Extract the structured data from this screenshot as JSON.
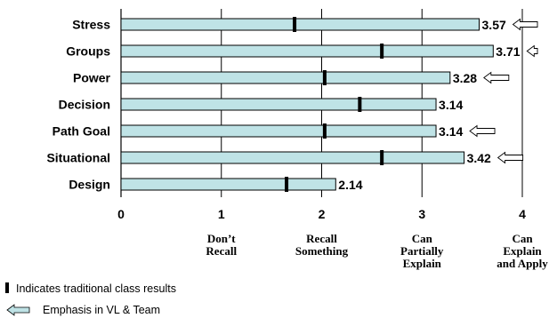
{
  "chart_data": {
    "type": "bar",
    "orientation": "horizontal",
    "categories": [
      "Stress",
      "Groups",
      "Power",
      "Decision",
      "Path Goal",
      "Situational",
      "Design"
    ],
    "values": [
      3.57,
      3.71,
      3.28,
      3.14,
      3.14,
      3.42,
      2.14
    ],
    "value_labels": [
      "3.57",
      "3.71",
      "3.28",
      "3.14",
      "3.14",
      "3.42",
      "2.14"
    ],
    "traditional_class_results": [
      1.73,
      2.6,
      2.03,
      2.38,
      2.03,
      2.6,
      1.65
    ],
    "emphasis_in_vl_and_team": [
      true,
      true,
      true,
      false,
      true,
      true,
      false
    ],
    "xlim": [
      0,
      4
    ],
    "x_ticks": [
      "0",
      "1",
      "2",
      "3",
      "4"
    ],
    "scale_labels": [
      {
        "x": 1,
        "lines": [
          "Don’t",
          "Recall"
        ]
      },
      {
        "x": 2,
        "lines": [
          "Recall",
          "Something"
        ]
      },
      {
        "x": 3,
        "lines": [
          "Can",
          "Partially",
          "Explain"
        ]
      },
      {
        "x": 4,
        "lines": [
          "Can",
          "Explain",
          "and Apply"
        ]
      }
    ],
    "legend": {
      "marker_text": "Indicates traditional class results",
      "arrow_text": "Emphasis in VL & Team"
    },
    "grid": "vertical",
    "colors": {
      "bar_fill": "#bfe3e6",
      "bar_stroke": "#000000",
      "marker": "#000000",
      "arrow_fill": "#ffffff"
    }
  }
}
